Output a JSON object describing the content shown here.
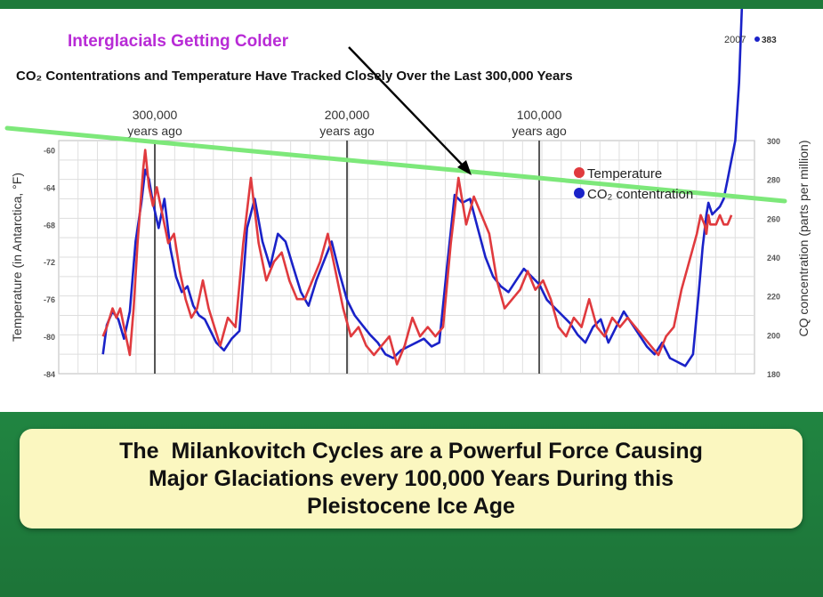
{
  "colors": {
    "temperature": "#e03a3e",
    "co2": "#1a22c8",
    "trend": "#7de87a",
    "annotation": "#b82bd6",
    "panel_bg": "#1f7a3c",
    "caption_bg": "#fbf7c0"
  },
  "chart_data": {
    "type": "line",
    "annotation_title": "Interglacials Getting Colder",
    "title": "CO₂ Contentrations and Temperature Have Tracked Closely Over the Last 300,000 Years",
    "xlabel": "",
    "ylabel_left": "Temperature (in Antarctica, °F)",
    "ylabel_right": "CQ concentration (parts per million)",
    "x_top_ticks": [
      {
        "value": 300,
        "line1": "300,000",
        "line2": "years ago"
      },
      {
        "value": 200,
        "line1": "200,000",
        "line2": "years ago"
      },
      {
        "value": 100,
        "line1": "100,000",
        "line2": "years ago"
      }
    ],
    "x_unit": "thousand years ago",
    "xlim": [
      350,
      -12
    ],
    "y_left_ticks": [
      -60,
      -64,
      -68,
      -72,
      -76,
      -80,
      -84
    ],
    "y_left_ylim": [
      -84,
      -59
    ],
    "y_right_ticks": [
      300,
      280,
      260,
      240,
      220,
      200,
      180
    ],
    "y_right_ylim": [
      180,
      300
    ],
    "grid": true,
    "legend_position": "top-right",
    "co2_peak_label_year": "2007",
    "co2_peak_label_value": "383",
    "series": [
      {
        "name": "Temperature",
        "axis": "left",
        "x": [
          327,
          325,
          322,
          320,
          318,
          316,
          313,
          311,
          309,
          306,
          305,
          303,
          301,
          299,
          296,
          293,
          290,
          287,
          284,
          281,
          278,
          275,
          272,
          269,
          266,
          262,
          258,
          254,
          250,
          246,
          242,
          238,
          234,
          230,
          226,
          222,
          218,
          214,
          210,
          206,
          202,
          198,
          194,
          190,
          186,
          182,
          178,
          174,
          170,
          166,
          162,
          158,
          154,
          150,
          146,
          142,
          138,
          134,
          130,
          126,
          122,
          118,
          114,
          110,
          106,
          102,
          98,
          94,
          90,
          86,
          82,
          78,
          74,
          70,
          66,
          62,
          58,
          54,
          50,
          46,
          42,
          38,
          34,
          30,
          26,
          22,
          18,
          16,
          14,
          13,
          12,
          11,
          10,
          8,
          6,
          4,
          2,
          0
        ],
        "values": [
          -80,
          -79,
          -77,
          -78,
          -77,
          -79,
          -82,
          -77,
          -70,
          -62,
          -60,
          -64,
          -66,
          -64,
          -67,
          -70,
          -69,
          -73,
          -76,
          -78,
          -77,
          -74,
          -77,
          -79,
          -81,
          -78,
          -79,
          -70,
          -63,
          -70,
          -74,
          -72,
          -71,
          -74,
          -76,
          -76,
          -74,
          -72,
          -69,
          -73,
          -77,
          -80,
          -79,
          -81,
          -82,
          -81,
          -80,
          -83,
          -81,
          -78,
          -80,
          -79,
          -80,
          -79,
          -70,
          -63,
          -68,
          -65,
          -67,
          -69,
          -74,
          -77,
          -76,
          -75,
          -73,
          -75,
          -74,
          -76,
          -79,
          -80,
          -78,
          -79,
          -76,
          -79,
          -80,
          -78,
          -79,
          -78,
          -79,
          -80,
          -81,
          -82,
          -80,
          -79,
          -75,
          -72,
          -69,
          -67,
          -68,
          -69,
          -67,
          -68,
          -68,
          -68,
          -67,
          -68,
          -68,
          -67
        ]
      },
      {
        "name": "CO₂ contentration",
        "axis": "right",
        "x": [
          327,
          325,
          322,
          319,
          316,
          313,
          310,
          307,
          305,
          303,
          301,
          298,
          295,
          292,
          289,
          286,
          283,
          280,
          277,
          274,
          271,
          268,
          264,
          260,
          256,
          252,
          248,
          244,
          240,
          236,
          232,
          228,
          224,
          220,
          216,
          212,
          208,
          204,
          200,
          196,
          192,
          188,
          184,
          180,
          176,
          172,
          168,
          164,
          160,
          156,
          152,
          148,
          144,
          140,
          136,
          132,
          128,
          124,
          120,
          116,
          112,
          108,
          104,
          100,
          96,
          92,
          88,
          84,
          80,
          76,
          72,
          68,
          64,
          60,
          56,
          52,
          48,
          44,
          40,
          36,
          32,
          28,
          24,
          20,
          17,
          15,
          13,
          12,
          10,
          8,
          6,
          4,
          2,
          0,
          -2,
          -4,
          -6
        ],
        "values": [
          190,
          205,
          212,
          208,
          198,
          212,
          248,
          268,
          285,
          280,
          268,
          255,
          270,
          245,
          230,
          222,
          225,
          215,
          210,
          208,
          202,
          196,
          192,
          198,
          202,
          255,
          270,
          248,
          235,
          252,
          248,
          235,
          222,
          215,
          228,
          238,
          248,
          232,
          218,
          210,
          205,
          200,
          196,
          190,
          188,
          192,
          194,
          196,
          198,
          194,
          196,
          235,
          272,
          268,
          270,
          255,
          240,
          230,
          225,
          222,
          228,
          234,
          230,
          226,
          218,
          214,
          210,
          206,
          200,
          196,
          204,
          208,
          196,
          204,
          212,
          206,
          200,
          194,
          190,
          196,
          188,
          186,
          184,
          190,
          222,
          245,
          262,
          268,
          262,
          264,
          266,
          270,
          280,
          290,
          300,
          330,
          383
        ]
      }
    ]
  },
  "caption": {
    "line1": "The  Milankovitch Cycles are a Powerful Force Causing",
    "line2": "Major Glaciations every 100,000 Years During this",
    "line3": "Pleistocene Ice Age"
  }
}
